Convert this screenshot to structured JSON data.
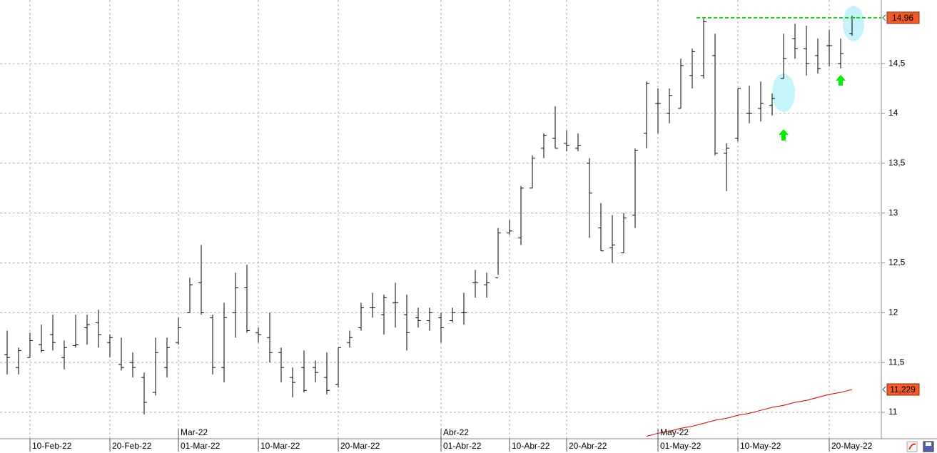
{
  "chart_data": {
    "type": "ohlc",
    "ylim": [
      10.735,
      15.138
    ],
    "yticks": [
      11,
      {
        "value": 11.5,
        "label": "11,5"
      },
      12,
      {
        "value": 12.5,
        "label": "12,5"
      },
      13,
      {
        "value": 13.5,
        "label": "13,5"
      },
      14,
      {
        "value": 14.5,
        "label": "14,5"
      }
    ],
    "grid": true,
    "color": "#000000",
    "categories": [
      null,
      null,
      "10-Feb-22",
      null,
      null,
      null,
      null,
      null,
      null,
      "20-Feb-22",
      null,
      null,
      null,
      null,
      null,
      "01-Mar-22",
      null,
      null,
      null,
      null,
      null,
      null,
      "10-Mar-22",
      null,
      null,
      null,
      null,
      null,
      null,
      "20-Mar-22",
      null,
      null,
      null,
      null,
      null,
      null,
      null,
      null,
      "01-Abr-22",
      null,
      null,
      null,
      null,
      null,
      "10-Abr-22",
      null,
      null,
      null,
      null,
      "20-Abr-22",
      null,
      null,
      null,
      null,
      null,
      null,
      null,
      "01-May-22",
      null,
      null,
      null,
      null,
      null,
      null,
      "10-May-22",
      null,
      null,
      null,
      null,
      null,
      null,
      null,
      "20-May-22",
      null,
      null
    ],
    "period_labels": [
      null,
      null,
      null,
      null,
      null,
      null,
      null,
      null,
      null,
      null,
      null,
      null,
      null,
      null,
      null,
      "Mar-22",
      null,
      null,
      null,
      null,
      null,
      null,
      null,
      null,
      null,
      null,
      null,
      null,
      null,
      null,
      null,
      null,
      null,
      null,
      null,
      null,
      null,
      null,
      "Abr-22",
      null,
      null,
      null,
      null,
      null,
      null,
      null,
      null,
      null,
      null,
      null,
      null,
      null,
      null,
      null,
      null,
      null,
      null,
      "May-22",
      null,
      null,
      null,
      null,
      null,
      null,
      null,
      null,
      null,
      null,
      null,
      null,
      null,
      null,
      null,
      null,
      null
    ],
    "open": [
      11.58,
      11.45,
      11.55,
      11.68,
      11.78,
      11.55,
      11.67,
      11.85,
      11.9,
      11.7,
      11.48,
      11.5,
      11.35,
      11.2,
      11.45,
      11.7,
      12.0,
      12.3,
      11.95,
      11.45,
      12.0,
      12.25,
      11.8,
      11.75,
      11.6,
      11.35,
      11.45,
      11.45,
      11.35,
      11.28,
      11.7,
      11.85,
      12.05,
      11.98,
      12.1,
      11.98,
      11.95,
      11.92,
      11.95,
      11.92,
      12.0,
      12.3,
      12.28,
      12.35,
      12.8,
      12.75,
      13.25,
      13.65,
      13.75,
      13.7,
      13.65,
      13.5,
      12.85,
      12.65,
      12.6,
      12.98,
      13.8,
      14.1,
      14.0,
      14.05,
      14.38,
      14.38,
      14.58,
      13.6,
      13.75,
      14.0,
      14.05,
      14.08,
      14.35,
      14.75,
      14.65,
      14.58,
      14.68,
      14.5,
      14.8
    ],
    "high": [
      11.82,
      11.65,
      11.8,
      11.88,
      11.98,
      11.72,
      11.98,
      11.98,
      12.03,
      11.78,
      11.75,
      11.6,
      11.4,
      11.75,
      11.75,
      11.95,
      12.35,
      12.68,
      11.98,
      12.1,
      12.4,
      12.48,
      11.85,
      12.0,
      11.65,
      11.45,
      11.62,
      11.52,
      11.6,
      11.65,
      11.82,
      12.1,
      12.2,
      12.18,
      12.3,
      12.18,
      12.05,
      12.05,
      12.0,
      12.05,
      12.2,
      12.43,
      12.4,
      12.85,
      12.93,
      13.27,
      13.58,
      13.8,
      14.07,
      13.83,
      13.8,
      13.55,
      13.1,
      12.98,
      13.0,
      13.65,
      14.32,
      14.25,
      14.25,
      14.55,
      14.65,
      14.95,
      14.8,
      13.7,
      14.25,
      14.28,
      14.32,
      14.2,
      14.8,
      14.9,
      14.88,
      14.75,
      14.84,
      14.75,
      14.98
    ],
    "low": [
      11.38,
      11.38,
      11.55,
      11.6,
      11.62,
      11.43,
      11.65,
      11.68,
      11.65,
      11.55,
      11.42,
      11.35,
      10.98,
      11.17,
      11.35,
      11.68,
      12.0,
      11.98,
      11.38,
      11.3,
      11.75,
      11.8,
      11.7,
      11.5,
      11.3,
      11.15,
      11.2,
      11.3,
      11.18,
      11.25,
      11.65,
      11.82,
      11.95,
      11.78,
      11.85,
      11.62,
      11.85,
      11.82,
      11.7,
      11.9,
      11.88,
      12.15,
      12.15,
      12.38,
      12.78,
      12.68,
      13.25,
      13.55,
      13.65,
      13.62,
      13.62,
      12.75,
      12.62,
      12.5,
      12.6,
      12.85,
      13.65,
      13.8,
      13.9,
      14.05,
      14.25,
      14.35,
      13.58,
      13.22,
      13.72,
      13.9,
      13.92,
      13.98,
      14.35,
      14.55,
      14.38,
      14.4,
      14.47,
      14.45,
      14.78
    ],
    "close": [
      11.55,
      11.62,
      11.72,
      11.62,
      11.7,
      11.65,
      11.68,
      11.88,
      11.78,
      11.75,
      11.45,
      11.45,
      11.1,
      11.6,
      11.65,
      11.85,
      12.28,
      12.0,
      11.45,
      11.95,
      12.25,
      11.82,
      11.78,
      11.6,
      11.45,
      11.3,
      11.22,
      11.4,
      11.22,
      11.65,
      11.75,
      12.05,
      12.05,
      12.15,
      12.1,
      11.8,
      11.92,
      12.0,
      11.85,
      12.0,
      12.0,
      12.3,
      12.3,
      12.8,
      12.82,
      13.25,
      13.55,
      13.78,
      13.65,
      13.68,
      13.68,
      13.2,
      12.62,
      12.68,
      12.95,
      13.63,
      14.3,
      14.1,
      14.18,
      14.48,
      14.62,
      14.92,
      13.6,
      13.65,
      14.25,
      14.0,
      14.1,
      14.15,
      14.55,
      14.65,
      14.5,
      14.45,
      14.68,
      14.6,
      14.96
    ],
    "line_series": {
      "color": "#cc0000",
      "values": [
        null,
        null,
        null,
        null,
        null,
        null,
        null,
        null,
        null,
        null,
        null,
        null,
        null,
        null,
        null,
        null,
        null,
        null,
        null,
        null,
        null,
        null,
        null,
        null,
        null,
        null,
        null,
        null,
        null,
        null,
        null,
        null,
        null,
        null,
        null,
        null,
        null,
        null,
        null,
        null,
        null,
        null,
        null,
        null,
        null,
        null,
        null,
        null,
        null,
        null,
        null,
        null,
        null,
        null,
        null,
        null,
        10.76,
        10.79,
        10.81,
        10.84,
        10.86,
        10.89,
        10.92,
        10.94,
        10.97,
        10.99,
        11.02,
        11.05,
        11.07,
        11.1,
        11.12,
        11.15,
        11.18,
        11.2,
        11.229
      ]
    },
    "price_labels": [
      {
        "value": 14.96,
        "label": "14,96"
      },
      {
        "value": 11.229,
        "label": "11,229"
      }
    ],
    "level_line_color": "#22cc22",
    "price_label_color": "#f05a28"
  }
}
